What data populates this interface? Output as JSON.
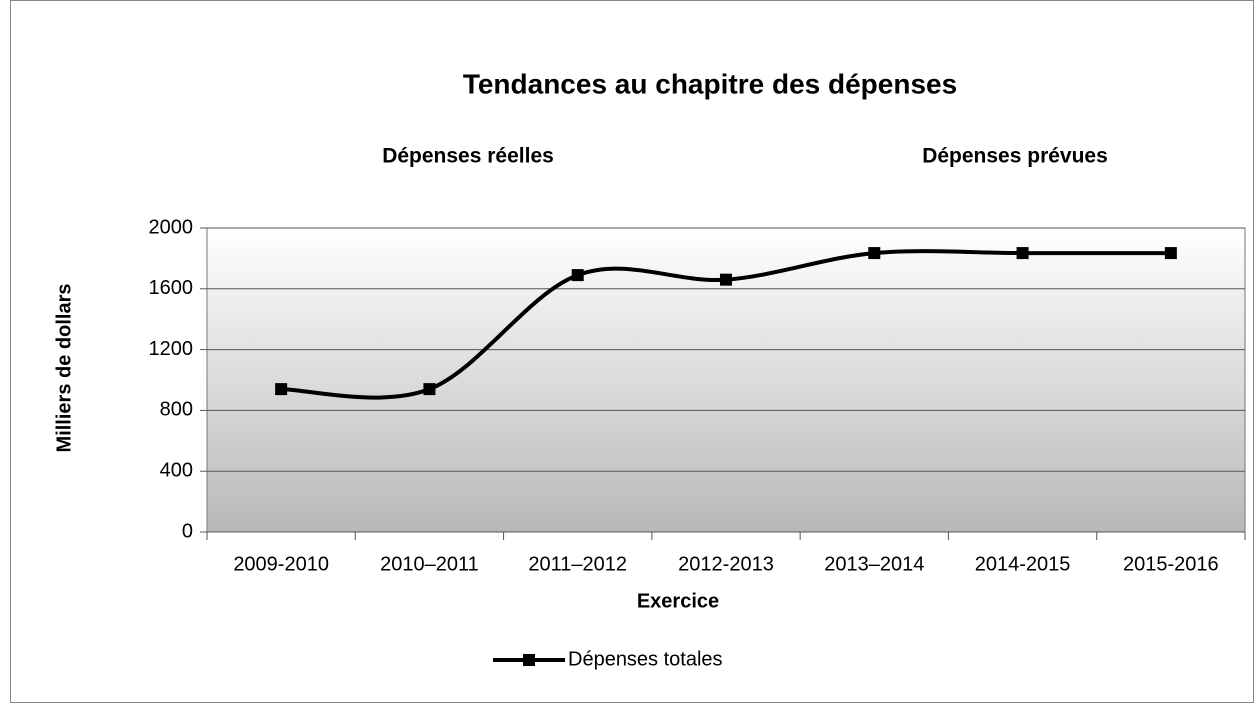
{
  "chart_data": {
    "type": "line",
    "title": "Tendances au chapitre des dépenses",
    "annotations": [
      "Dépenses réelles",
      "Dépenses prévues"
    ],
    "x_label": "Exercice",
    "y_label": "Milliers de dollars",
    "categories": [
      "2009-2010",
      "2010–2011",
      "2011–2012",
      "2012-2013",
      "2013–2014",
      "2014-2015",
      "2015-2016"
    ],
    "series": [
      {
        "name": "Dépenses totales",
        "color": "#000000",
        "values": [
          940,
          940,
          1690,
          1660,
          1835,
          1835,
          1835
        ]
      }
    ],
    "ylim": [
      0,
      2000
    ],
    "yticks": [
      0,
      400,
      800,
      1200,
      1600,
      2000
    ],
    "grid": true,
    "smooth": true,
    "legend": "bottom"
  }
}
